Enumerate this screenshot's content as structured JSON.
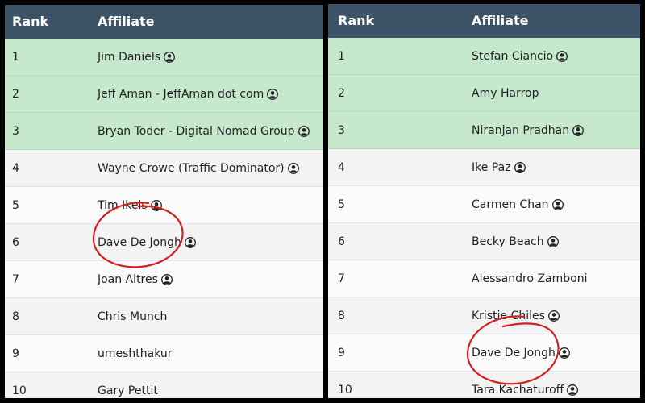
{
  "left": {
    "header": {
      "rank": "Rank",
      "affiliate": "Affiliate"
    },
    "rows": [
      {
        "rank": "1",
        "name": "Jim Daniels",
        "verified": true
      },
      {
        "rank": "2",
        "name": "Jeff Aman - JeffAman dot com",
        "verified": true
      },
      {
        "rank": "3",
        "name": "Bryan Toder - Digital Nomad Group",
        "verified": true
      },
      {
        "rank": "4",
        "name": "Wayne Crowe (Traffic Dominator)",
        "verified": true
      },
      {
        "rank": "5",
        "name": "Tim Ikels",
        "verified": true
      },
      {
        "rank": "6",
        "name": "Dave De Jongh",
        "verified": true
      },
      {
        "rank": "7",
        "name": "Joan Altres",
        "verified": true
      },
      {
        "rank": "8",
        "name": "Chris Munch",
        "verified": false
      },
      {
        "rank": "9",
        "name": "umeshthakur",
        "verified": false
      },
      {
        "rank": "10",
        "name": "Gary Pettit",
        "verified": false
      }
    ]
  },
  "right": {
    "header": {
      "rank": "Rank",
      "affiliate": "Affiliate"
    },
    "rows": [
      {
        "rank": "1",
        "name": "Stefan Ciancio",
        "verified": true
      },
      {
        "rank": "2",
        "name": "Amy Harrop",
        "verified": false
      },
      {
        "rank": "3",
        "name": "Niranjan Pradhan",
        "verified": true
      },
      {
        "rank": "4",
        "name": "Ike Paz",
        "verified": true
      },
      {
        "rank": "5",
        "name": "Carmen Chan",
        "verified": true
      },
      {
        "rank": "6",
        "name": "Becky Beach",
        "verified": true
      },
      {
        "rank": "7",
        "name": "Alessandro Zamboni",
        "verified": false
      },
      {
        "rank": "8",
        "name": "Kristie Chiles",
        "verified": true
      },
      {
        "rank": "9",
        "name": "Dave De Jongh",
        "verified": true
      },
      {
        "rank": "10",
        "name": "Tara Kachaturoff",
        "verified": true
      }
    ]
  },
  "colors": {
    "header_bg": "#3d5368",
    "top3_bg": "#c6e8cc",
    "highlight_circle": "#d42020"
  },
  "icons": {
    "user": "user-profile-icon"
  }
}
